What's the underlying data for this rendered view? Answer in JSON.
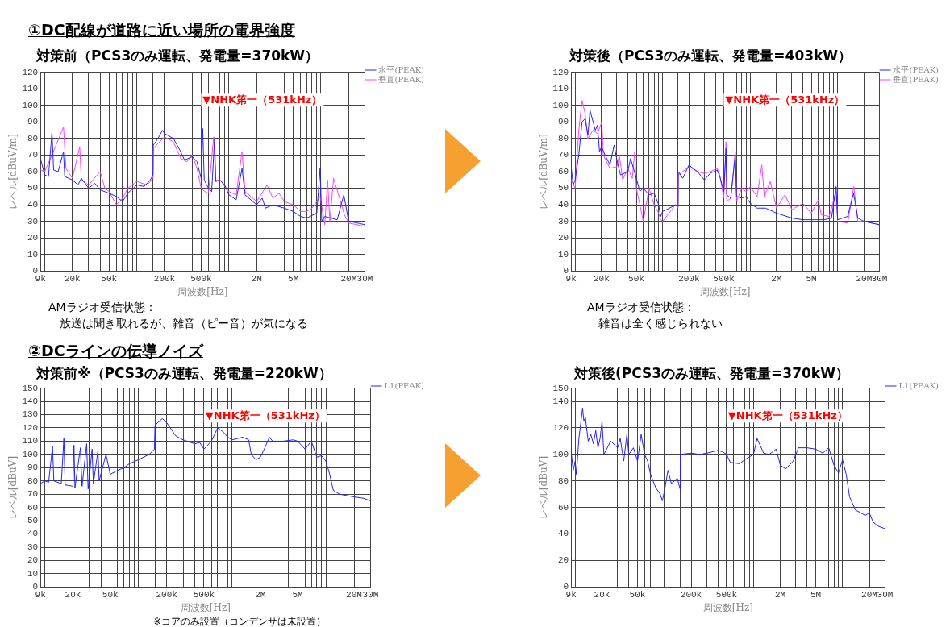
{
  "chart_data": [
    {
      "type": "line",
      "title": "対策前（PCS3のみ運転、発電量=370kW）",
      "xlabel": "周波数[Hz]",
      "ylabel": "レベル[dBuV/m]",
      "log": "x",
      "grid": true,
      "legend": "top right",
      "xlim": [
        9000,
        30000000
      ],
      "ylim": [
        0,
        120
      ],
      "yticks": [
        0,
        10,
        20,
        30,
        40,
        50,
        60,
        70,
        80,
        90,
        100,
        110,
        120
      ],
      "xticks": [
        {
          "value": 9000,
          "label": "9k"
        },
        {
          "value": 10000,
          "label": null
        },
        {
          "value": 20000,
          "label": "20k"
        },
        {
          "value": 30000,
          "label": null
        },
        {
          "value": 40000,
          "label": null
        },
        {
          "value": 50000,
          "label": "50k"
        },
        {
          "value": 60000,
          "label": null
        },
        {
          "value": 70000,
          "label": null
        },
        {
          "value": 80000,
          "label": null
        },
        {
          "value": 90000,
          "label": null
        },
        {
          "value": 100000,
          "label": null
        },
        {
          "value": 150000,
          "label": null
        },
        {
          "value": 200000,
          "label": "200k"
        },
        {
          "value": 300000,
          "label": null
        },
        {
          "value": 400000,
          "label": null
        },
        {
          "value": 500000,
          "label": "500k"
        },
        {
          "value": 600000,
          "label": null
        },
        {
          "value": 700000,
          "label": null
        },
        {
          "value": 800000,
          "label": null
        },
        {
          "value": 900000,
          "label": null
        },
        {
          "value": 1000000,
          "label": null
        },
        {
          "value": 2000000,
          "label": "2M"
        },
        {
          "value": 3000000,
          "label": null
        },
        {
          "value": 4000000,
          "label": null
        },
        {
          "value": 5000000,
          "label": "5M"
        },
        {
          "value": 6000000,
          "label": null
        },
        {
          "value": 7000000,
          "label": null
        },
        {
          "value": 8000000,
          "label": null
        },
        {
          "value": 9000000,
          "label": null
        },
        {
          "value": 10000000,
          "label": null
        },
        {
          "value": 20000000,
          "label": "20M"
        },
        {
          "value": 30000000,
          "label": "30M"
        }
      ],
      "annotations": [
        "①DC配線が道路に近い場所の電界強度",
        "AMラジオ受信状態：",
        "放送は聞き取れるが、雑音（ピー音）が気になる",
        "▼NHK第一（531kHz）"
      ],
      "series": [
        {
          "name": "水平(PEAK)",
          "color": "#2323ff",
          "x": [
            9000,
            10000,
            11000,
            12000,
            12500,
            14000,
            16000,
            16500,
            20000,
            23000,
            25000,
            30000,
            35000,
            40000,
            50000,
            60000,
            70000,
            80000,
            100000,
            120000,
            140000,
            150000,
            151000,
            170000,
            190000,
            200000,
            250000,
            300000,
            330000,
            400000,
            450000,
            500000,
            520000,
            540000,
            600000,
            650000,
            700000,
            720000,
            800000,
            900000,
            1000000,
            1200000,
            1390000,
            1500000,
            2000000,
            2300000,
            2500000,
            3000000,
            4000000,
            5000000,
            6000000,
            7000000,
            9000000,
            9800000,
            10200000,
            11000000,
            15000000,
            17700000,
            20000000,
            25000000,
            30000000
          ],
          "values": [
            68,
            58,
            57,
            84,
            61,
            60,
            72,
            57,
            55,
            52,
            56,
            50,
            53,
            49,
            47,
            45,
            42,
            47,
            52,
            51,
            55,
            58,
            76,
            80,
            85,
            83,
            80,
            72,
            67,
            69,
            66,
            56,
            86,
            55,
            50,
            48,
            80,
            54,
            55,
            52,
            46,
            43,
            62,
            46,
            40,
            44,
            38,
            40,
            38,
            36,
            33,
            32,
            35,
            62,
            30,
            33,
            31,
            46,
            30,
            29,
            28
          ]
        },
        {
          "name": "垂直(PEAK)",
          "color": "#ff40ff",
          "x": [
            9000,
            10000,
            12000,
            16000,
            17000,
            20000,
            24000,
            25000,
            30000,
            40000,
            45000,
            50000,
            60000,
            70000,
            80000,
            100000,
            130000,
            150000,
            151000,
            200000,
            250000,
            300000,
            350000,
            400000,
            450000,
            500000,
            550000,
            600000,
            684000,
            720000,
            800000,
            1000000,
            1200000,
            1390000,
            1500000,
            2000000,
            2600000,
            3000000,
            3500000,
            4000000,
            5000000,
            6000000,
            7000000,
            8000000,
            9800000,
            11000000,
            11800000,
            12500000,
            13700000,
            18000000,
            20000000,
            30000000
          ],
          "values": [
            61,
            60,
            70,
            87,
            62,
            56,
            75,
            55,
            52,
            60,
            50,
            48,
            40,
            44,
            50,
            54,
            52,
            56,
            74,
            81,
            78,
            68,
            66,
            70,
            62,
            50,
            48,
            47,
            81,
            55,
            55,
            48,
            46,
            72,
            48,
            42,
            52,
            44,
            47,
            42,
            40,
            36,
            36,
            38,
            45,
            28,
            55,
            30,
            56,
            34,
            29,
            27
          ]
        }
      ]
    },
    {
      "type": "line",
      "title": "対策後（PCS3のみ運転、発電量=403kW）",
      "xlabel": "周波数[Hz]",
      "ylabel": "レベル[dBuV/m]",
      "log": "x",
      "grid": true,
      "legend": "top right",
      "xlim": [
        9000,
        30000000
      ],
      "ylim": [
        0,
        120
      ],
      "yticks": [
        0,
        10,
        20,
        30,
        40,
        50,
        60,
        70,
        80,
        90,
        100,
        110,
        120
      ],
      "xticks": [
        {
          "value": 9000,
          "label": "9k"
        },
        {
          "value": 10000,
          "label": null
        },
        {
          "value": 20000,
          "label": "20k"
        },
        {
          "value": 30000,
          "label": null
        },
        {
          "value": 40000,
          "label": null
        },
        {
          "value": 50000,
          "label": "50k"
        },
        {
          "value": 60000,
          "label": null
        },
        {
          "value": 70000,
          "label": null
        },
        {
          "value": 80000,
          "label": null
        },
        {
          "value": 90000,
          "label": null
        },
        {
          "value": 100000,
          "label": null
        },
        {
          "value": 150000,
          "label": null
        },
        {
          "value": 200000,
          "label": "200k"
        },
        {
          "value": 300000,
          "label": null
        },
        {
          "value": 400000,
          "label": null
        },
        {
          "value": 500000,
          "label": "500k"
        },
        {
          "value": 600000,
          "label": null
        },
        {
          "value": 700000,
          "label": null
        },
        {
          "value": 800000,
          "label": null
        },
        {
          "value": 900000,
          "label": null
        },
        {
          "value": 1000000,
          "label": null
        },
        {
          "value": 2000000,
          "label": "2M"
        },
        {
          "value": 3000000,
          "label": null
        },
        {
          "value": 4000000,
          "label": null
        },
        {
          "value": 5000000,
          "label": "5M"
        },
        {
          "value": 6000000,
          "label": null
        },
        {
          "value": 7000000,
          "label": null
        },
        {
          "value": 8000000,
          "label": null
        },
        {
          "value": 9000000,
          "label": null
        },
        {
          "value": 10000000,
          "label": null
        },
        {
          "value": 20000000,
          "label": "20M"
        },
        {
          "value": 30000000,
          "label": "30M"
        }
      ],
      "annotations": [
        "AMラジオ受信状態：",
        "雑音は全く感じられない",
        "▼NHK第一（531kHz）"
      ],
      "series": [
        {
          "name": "水平(PEAK)",
          "color": "#2323ff",
          "x": [
            9000,
            9500,
            10000,
            11000,
            12000,
            13000,
            14000,
            14800,
            17000,
            18000,
            19000,
            20000,
            22000,
            25000,
            27900,
            30000,
            33000,
            40000,
            43000,
            50000,
            55000,
            60000,
            70000,
            80000,
            90000,
            95000,
            100000,
            120000,
            140000,
            150000,
            151000,
            170000,
            200000,
            250000,
            300000,
            350000,
            420000,
            450000,
            500000,
            530000,
            540000,
            600000,
            676000,
            700000,
            800000,
            900000,
            1000000,
            1200000,
            1500000,
            2000000,
            3000000,
            4000000,
            5000000,
            7000000,
            8500000,
            9600000,
            10000000,
            13000000,
            15200000,
            17000000,
            20000000,
            30000000
          ],
          "values": [
            63,
            52,
            55,
            70,
            90,
            92,
            82,
            97,
            85,
            88,
            72,
            75,
            70,
            64,
            76,
            67,
            58,
            60,
            68,
            56,
            48,
            50,
            46,
            47,
            40,
            33,
            36,
            38,
            40,
            39,
            60,
            56,
            64,
            60,
            55,
            59,
            61,
            57,
            48,
            74,
            46,
            44,
            70,
            45,
            44,
            45,
            41,
            38,
            38,
            35,
            32,
            31,
            31,
            31,
            32,
            51,
            31,
            33,
            47,
            32,
            30,
            28
          ]
        },
        {
          "name": "垂直(PEAK)",
          "color": "#ff40ff",
          "x": [
            9000,
            10000,
            11000,
            12000,
            13000,
            14000,
            16000,
            18000,
            20200,
            21000,
            25000,
            30000,
            32000,
            35000,
            40000,
            45000,
            48000,
            50000,
            55000,
            60000,
            70000,
            80000,
            90000,
            95000,
            100000,
            140000,
            150000,
            151000,
            200000,
            250000,
            300000,
            350000,
            420000,
            450000,
            500000,
            530000,
            540000,
            600000,
            676000,
            700000,
            800000,
            900000,
            1000000,
            1200000,
            1360000,
            1450000,
            1700000,
            2000000,
            2500000,
            3000000,
            4000000,
            5000000,
            6000000,
            6500000,
            8000000,
            9600000,
            10000000,
            13000000,
            15300000,
            17000000,
            20000000,
            30000000
          ],
          "values": [
            55,
            50,
            85,
            103,
            95,
            80,
            85,
            83,
            90,
            70,
            62,
            63,
            70,
            55,
            62,
            56,
            72,
            50,
            40,
            30,
            50,
            40,
            35,
            31,
            30,
            40,
            38,
            58,
            63,
            60,
            59,
            60,
            62,
            58,
            44,
            78,
            42,
            44,
            72,
            42,
            50,
            48,
            51,
            45,
            64,
            45,
            54,
            38,
            46,
            37,
            41,
            35,
            43,
            34,
            33,
            48,
            30,
            29,
            51,
            30,
            30,
            28
          ]
        }
      ]
    },
    {
      "type": "line",
      "title": "対策前※（PCS3のみ運転、発電量=220kW）",
      "xlabel": "周波数[Hz]",
      "ylabel": "レベル[dBuV]",
      "log": "x",
      "grid": true,
      "legend": "top right",
      "xlim": [
        9000,
        30000000
      ],
      "ylim": [
        0,
        150
      ],
      "yticks": [
        0,
        10,
        20,
        30,
        40,
        50,
        60,
        70,
        80,
        90,
        100,
        110,
        120,
        130,
        140,
        150
      ],
      "xticks": [
        {
          "value": 9000,
          "label": "9k"
        },
        {
          "value": 10000,
          "label": null
        },
        {
          "value": 20000,
          "label": "20k"
        },
        {
          "value": 30000,
          "label": null
        },
        {
          "value": 40000,
          "label": null
        },
        {
          "value": 50000,
          "label": "50k"
        },
        {
          "value": 60000,
          "label": null
        },
        {
          "value": 70000,
          "label": null
        },
        {
          "value": 80000,
          "label": null
        },
        {
          "value": 90000,
          "label": null
        },
        {
          "value": 100000,
          "label": null
        },
        {
          "value": 150000,
          "label": null
        },
        {
          "value": 200000,
          "label": "200k"
        },
        {
          "value": 300000,
          "label": null
        },
        {
          "value": 400000,
          "label": null
        },
        {
          "value": 500000,
          "label": "500k"
        },
        {
          "value": 600000,
          "label": null
        },
        {
          "value": 700000,
          "label": null
        },
        {
          "value": 800000,
          "label": null
        },
        {
          "value": 900000,
          "label": null
        },
        {
          "value": 1000000,
          "label": null
        },
        {
          "value": 2000000,
          "label": "2M"
        },
        {
          "value": 3000000,
          "label": null
        },
        {
          "value": 4000000,
          "label": null
        },
        {
          "value": 5000000,
          "label": "5M"
        },
        {
          "value": 6000000,
          "label": null
        },
        {
          "value": 7000000,
          "label": null
        },
        {
          "value": 8000000,
          "label": null
        },
        {
          "value": 9000000,
          "label": null
        },
        {
          "value": 10000000,
          "label": null
        },
        {
          "value": 20000000,
          "label": "20M"
        },
        {
          "value": 30000000,
          "label": "30M"
        }
      ],
      "annotations": [
        "②DCラインの伝導ノイズ",
        "※コアのみ設置（コンデンサは未設置）",
        "▼NHK第一（531kHz）"
      ],
      "series": [
        {
          "name": "L1(PEAK)",
          "color": "#2323ff",
          "x": [
            9000,
            10000,
            11000,
            12100,
            12500,
            15000,
            16000,
            16500,
            20000,
            20500,
            21000,
            24000,
            25000,
            28000,
            29000,
            32000,
            33000,
            37000,
            38000,
            45000,
            50000,
            60000,
            70000,
            80000,
            100000,
            130000,
            148000,
            150000,
            180000,
            200000,
            250000,
            300000,
            400000,
            450000,
            500000,
            600000,
            700000,
            800000,
            900000,
            1000000,
            1300000,
            1500000,
            1600000,
            1800000,
            2000000,
            2200000,
            2500000,
            2700000,
            3500000,
            4500000,
            5000000,
            6000000,
            7000000,
            8000000,
            9000000,
            10000000,
            11000000,
            12000000,
            14000000,
            20000000,
            25000000,
            30000000
          ],
          "values": [
            78,
            80,
            79,
            106,
            80,
            78,
            112,
            77,
            76,
            107,
            75,
            105,
            76,
            108,
            74,
            104,
            78,
            103,
            80,
            100,
            85,
            88,
            90,
            93,
            96,
            100,
            104,
            122,
            127,
            124,
            114,
            111,
            108,
            109,
            104,
            110,
            120,
            117,
            113,
            111,
            113,
            111,
            100,
            96,
            98,
            104,
            113,
            110,
            110,
            111,
            110,
            104,
            110,
            98,
            99,
            95,
            85,
            73,
            70,
            68,
            67,
            65
          ]
        }
      ]
    },
    {
      "type": "line",
      "title": "対策後(PCS3のみ運転、発電量=370kW）",
      "xlabel": "周波数[Hz]",
      "ylabel": "レベル[dBuV]",
      "log": "x",
      "grid": true,
      "legend": "top right",
      "xlim": [
        9000,
        30000000
      ],
      "ylim": [
        0,
        150
      ],
      "yticks": [
        0,
        20,
        40,
        60,
        80,
        100,
        120,
        140,
        150
      ],
      "xticks": [
        {
          "value": 9000,
          "label": "9k"
        },
        {
          "value": 10000,
          "label": null
        },
        {
          "value": 20000,
          "label": "20k"
        },
        {
          "value": 30000,
          "label": null
        },
        {
          "value": 40000,
          "label": null
        },
        {
          "value": 50000,
          "label": "50k"
        },
        {
          "value": 60000,
          "label": null
        },
        {
          "value": 70000,
          "label": null
        },
        {
          "value": 80000,
          "label": null
        },
        {
          "value": 90000,
          "label": null
        },
        {
          "value": 100000,
          "label": null
        },
        {
          "value": 150000,
          "label": null
        },
        {
          "value": 200000,
          "label": "200k"
        },
        {
          "value": 300000,
          "label": null
        },
        {
          "value": 400000,
          "label": null
        },
        {
          "value": 500000,
          "label": "500k"
        },
        {
          "value": 600000,
          "label": null
        },
        {
          "value": 700000,
          "label": null
        },
        {
          "value": 800000,
          "label": null
        },
        {
          "value": 900000,
          "label": null
        },
        {
          "value": 1000000,
          "label": null
        },
        {
          "value": 2000000,
          "label": "2M"
        },
        {
          "value": 3000000,
          "label": null
        },
        {
          "value": 4000000,
          "label": null
        },
        {
          "value": 5000000,
          "label": "5M"
        },
        {
          "value": 6000000,
          "label": null
        },
        {
          "value": 7000000,
          "label": null
        },
        {
          "value": 8000000,
          "label": null
        },
        {
          "value": 9000000,
          "label": null
        },
        {
          "value": 10000000,
          "label": null
        },
        {
          "value": 20000000,
          "label": "20M"
        },
        {
          "value": 30000000,
          "label": "30M"
        }
      ],
      "annotations": [
        "▼NHK第一（531kHz）"
      ],
      "series": [
        {
          "name": "L1(PEAK)",
          "color": "#2323ff",
          "x": [
            9000,
            9500,
            10000,
            10300,
            11000,
            12100,
            12500,
            13000,
            14000,
            15000,
            16000,
            17000,
            18000,
            19000,
            20000,
            21000,
            25000,
            30000,
            32000,
            35000,
            38000,
            40000,
            45000,
            50000,
            55000,
            60000,
            65000,
            70000,
            80000,
            90000,
            95000,
            100000,
            110000,
            120000,
            140000,
            150000,
            151000,
            200000,
            250000,
            300000,
            400000,
            450000,
            500000,
            550000,
            700000,
            800000,
            1000000,
            1100000,
            1300000,
            1500000,
            1800000,
            2000000,
            2300000,
            2800000,
            3200000,
            4000000,
            5000000,
            6000000,
            7000000,
            8000000,
            9000000,
            10000000,
            11000000,
            12000000,
            14000000,
            16000000,
            18000000,
            20000000,
            22000000,
            25000000,
            30000000
          ],
          "values": [
            102,
            88,
            95,
            85,
            112,
            135,
            125,
            128,
            110,
            115,
            108,
            118,
            105,
            112,
            125,
            100,
            110,
            105,
            112,
            95,
            115,
            100,
            105,
            95,
            115,
            100,
            95,
            85,
            75,
            70,
            65,
            72,
            88,
            78,
            82,
            74,
            100,
            101,
            100,
            101,
            103,
            102,
            100,
            94,
            93,
            96,
            100,
            112,
            101,
            100,
            104,
            92,
            89,
            95,
            105,
            105,
            104,
            101,
            105,
            92,
            86,
            96,
            85,
            68,
            58,
            56,
            54,
            56,
            49,
            46,
            44
          ]
        }
      ]
    }
  ]
}
